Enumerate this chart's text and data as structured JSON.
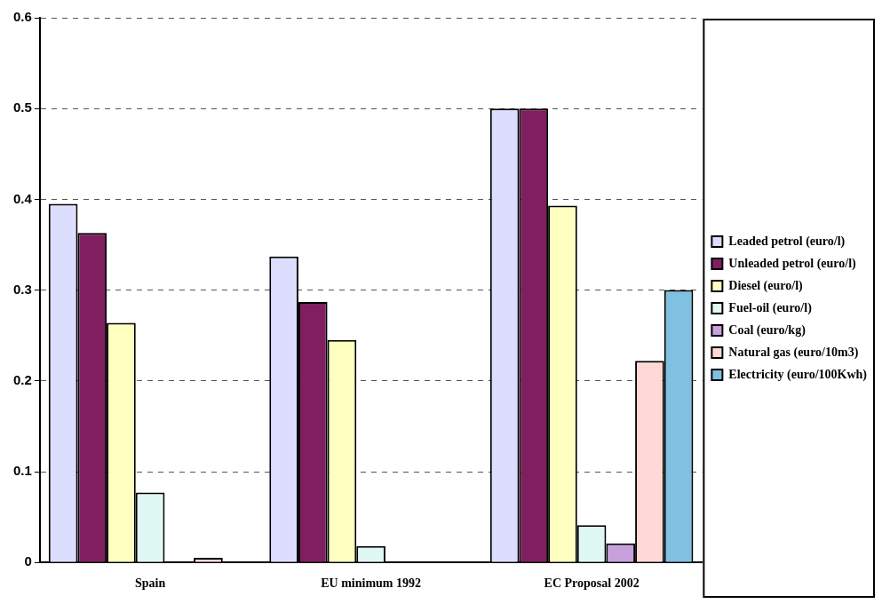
{
  "chart_data": {
    "type": "bar",
    "categories": [
      "Spain",
      "EU minimum 1992",
      "EC Proposal 2002"
    ],
    "series": [
      {
        "name": "Leaded petrol (euro/l)",
        "color": "#ddddff",
        "values": [
          0.395,
          0.337,
          0.5
        ]
      },
      {
        "name": "Unleaded petrol (euro/l)",
        "color": "#7f1f5f",
        "values": [
          0.363,
          0.287,
          0.5
        ]
      },
      {
        "name": "Diesel (euro/l)",
        "color": "#ffffc0",
        "values": [
          0.264,
          0.245,
          0.393
        ]
      },
      {
        "name": "Fuel-oil (euro/l)",
        "color": "#e0f8f4",
        "values": [
          0.077,
          0.018,
          0.041
        ]
      },
      {
        "name": "Coal (euro/kg)",
        "color": "#c8a0dc",
        "values": [
          null,
          null,
          0.021
        ]
      },
      {
        "name": "Natural gas (euro/10m3)",
        "color": "#ffd8d8",
        "values": [
          0.005,
          null,
          0.222
        ]
      },
      {
        "name": "Electricity (euro/100Kwh)",
        "color": "#80c0e0",
        "values": [
          null,
          null,
          0.3
        ]
      }
    ],
    "ylim": [
      0,
      0.6
    ],
    "yticks": [
      0,
      0.1,
      0.2,
      0.3,
      0.4,
      0.5,
      0.6
    ],
    "grid": "y",
    "legend": "right"
  }
}
